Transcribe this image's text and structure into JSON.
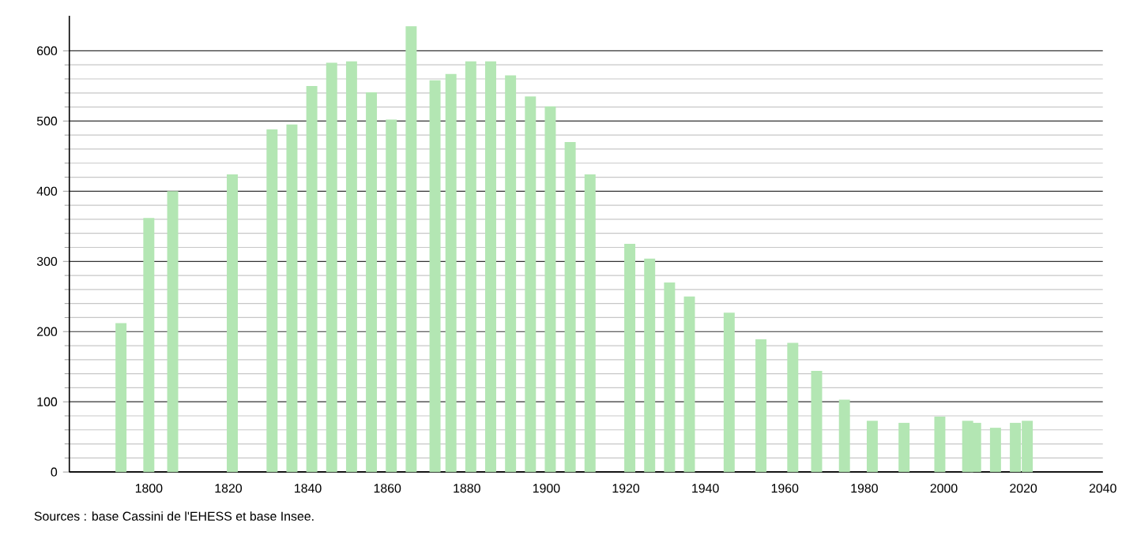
{
  "chart_data": {
    "type": "bar",
    "x": [
      1793,
      1800,
      1806,
      1821,
      1831,
      1836,
      1841,
      1846,
      1851,
      1856,
      1861,
      1866,
      1872,
      1876,
      1881,
      1886,
      1891,
      1896,
      1901,
      1906,
      1911,
      1921,
      1926,
      1931,
      1936,
      1946,
      1954,
      1962,
      1968,
      1975,
      1982,
      1990,
      1999,
      2006,
      2008,
      2013,
      2018,
      2021
    ],
    "values": [
      212,
      362,
      400,
      424,
      488,
      495,
      550,
      583,
      585,
      541,
      502,
      635,
      558,
      567,
      585,
      585,
      565,
      535,
      521,
      470,
      424,
      325,
      304,
      270,
      250,
      227,
      189,
      184,
      144,
      103,
      73,
      70,
      79,
      73,
      70,
      63,
      70,
      73
    ],
    "color": "#b3e6b3",
    "xlim": [
      1780,
      2040
    ],
    "ylim": [
      0,
      650
    ],
    "xticks": [
      1800,
      1820,
      1840,
      1860,
      1880,
      1900,
      1920,
      1940,
      1960,
      1980,
      2000,
      2020,
      2040
    ],
    "yticks": [
      0,
      100,
      200,
      300,
      400,
      500,
      600
    ],
    "grid": "y",
    "annotations": [
      "Sources : base Cassini de l'EHESS et base Insee."
    ]
  }
}
